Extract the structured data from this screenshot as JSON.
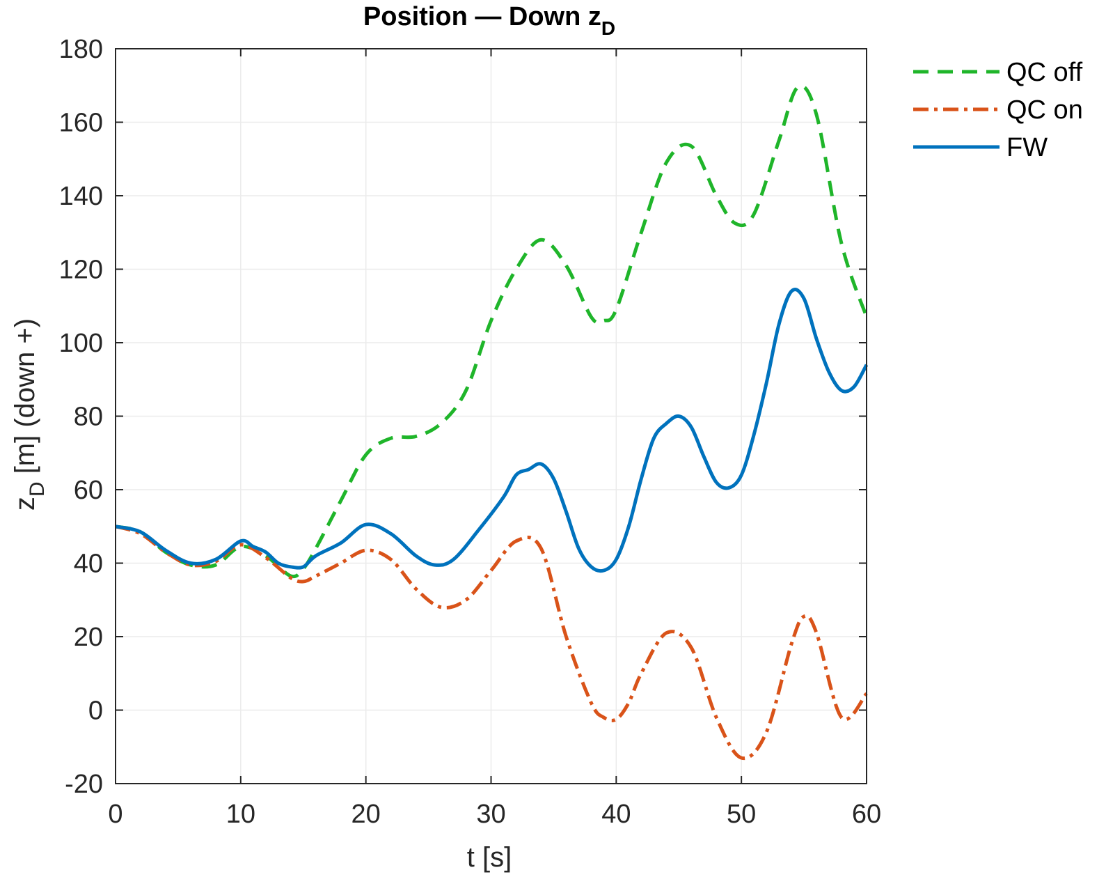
{
  "chart_data": {
    "type": "line",
    "title": "Position — Down z",
    "title_subscript": "D",
    "xlabel": "t [s]",
    "ylabel_main": "z",
    "ylabel_subscript": "D",
    "ylabel_rest": " [m] (down +)",
    "xlim": [
      0,
      60
    ],
    "ylim": [
      -20,
      180
    ],
    "xticks": [
      0,
      10,
      20,
      30,
      40,
      50,
      60
    ],
    "yticks": [
      -20,
      0,
      20,
      40,
      60,
      80,
      100,
      120,
      140,
      160,
      180
    ],
    "grid": true,
    "legend_position": "top-right (outside)",
    "series": [
      {
        "name": "QC off",
        "color": "#1fb52a",
        "dash": "dashed",
        "x": [
          0,
          2,
          4,
          6,
          8,
          10,
          12,
          14,
          15,
          16,
          18,
          20,
          22,
          24,
          26,
          28,
          30,
          32,
          34,
          36,
          38,
          39,
          40,
          42,
          44,
          46,
          48,
          49.5,
          51,
          53,
          54.5,
          56,
          58,
          60
        ],
        "y": [
          50,
          48.5,
          43,
          39.5,
          39.5,
          44.5,
          42,
          36.5,
          38.5,
          44,
          57,
          69.5,
          74,
          74.5,
          78,
          87,
          106,
          120,
          128,
          121,
          107,
          106,
          109,
          130,
          149,
          153.5,
          140,
          132.5,
          135,
          155,
          169.5,
          162,
          127,
          107
        ]
      },
      {
        "name": "QC on",
        "color": "#d95319",
        "dash": "dashdot",
        "x": [
          0,
          2,
          4,
          6,
          8,
          10,
          12,
          14,
          15,
          16,
          18,
          20,
          22,
          24,
          26,
          28,
          30,
          32,
          34,
          36,
          38,
          39,
          40,
          41,
          42,
          44,
          46,
          48,
          50,
          52,
          54,
          55,
          56,
          58,
          60
        ],
        "y": [
          50,
          48,
          43,
          39.5,
          40.5,
          45,
          41.5,
          36,
          35,
          36.5,
          40,
          43.5,
          41,
          33,
          28,
          30,
          38,
          46,
          44,
          20,
          2,
          -2,
          -2.5,
          2,
          10,
          21,
          17,
          -2,
          -13,
          -6,
          18,
          25.5,
          21,
          -2,
          4.5
        ]
      },
      {
        "name": "FW",
        "color": "#0072bd",
        "dash": "solid",
        "x": [
          0,
          2,
          4,
          6,
          8,
          10,
          11,
          12,
          13,
          14,
          15,
          16,
          18,
          20,
          22,
          24,
          25.5,
          27,
          29,
          31,
          32,
          33,
          34,
          35,
          36,
          37,
          38,
          39,
          40,
          41,
          42,
          43,
          44,
          45,
          46,
          47,
          48,
          49,
          50,
          51,
          52,
          53,
          54,
          55,
          56,
          57,
          58,
          59,
          60
        ],
        "y": [
          50,
          48.5,
          43.5,
          40,
          41,
          46,
          44.5,
          43,
          40,
          39,
          39,
          42,
          45.5,
          50.5,
          48,
          42,
          39.5,
          41,
          49,
          58,
          64,
          65.5,
          67,
          63,
          54,
          44,
          39,
          38,
          41,
          50,
          63,
          74,
          78,
          80,
          77,
          69,
          62,
          60.5,
          64,
          75,
          89,
          105,
          114,
          112,
          101,
          92,
          87,
          88,
          94
        ]
      }
    ]
  }
}
